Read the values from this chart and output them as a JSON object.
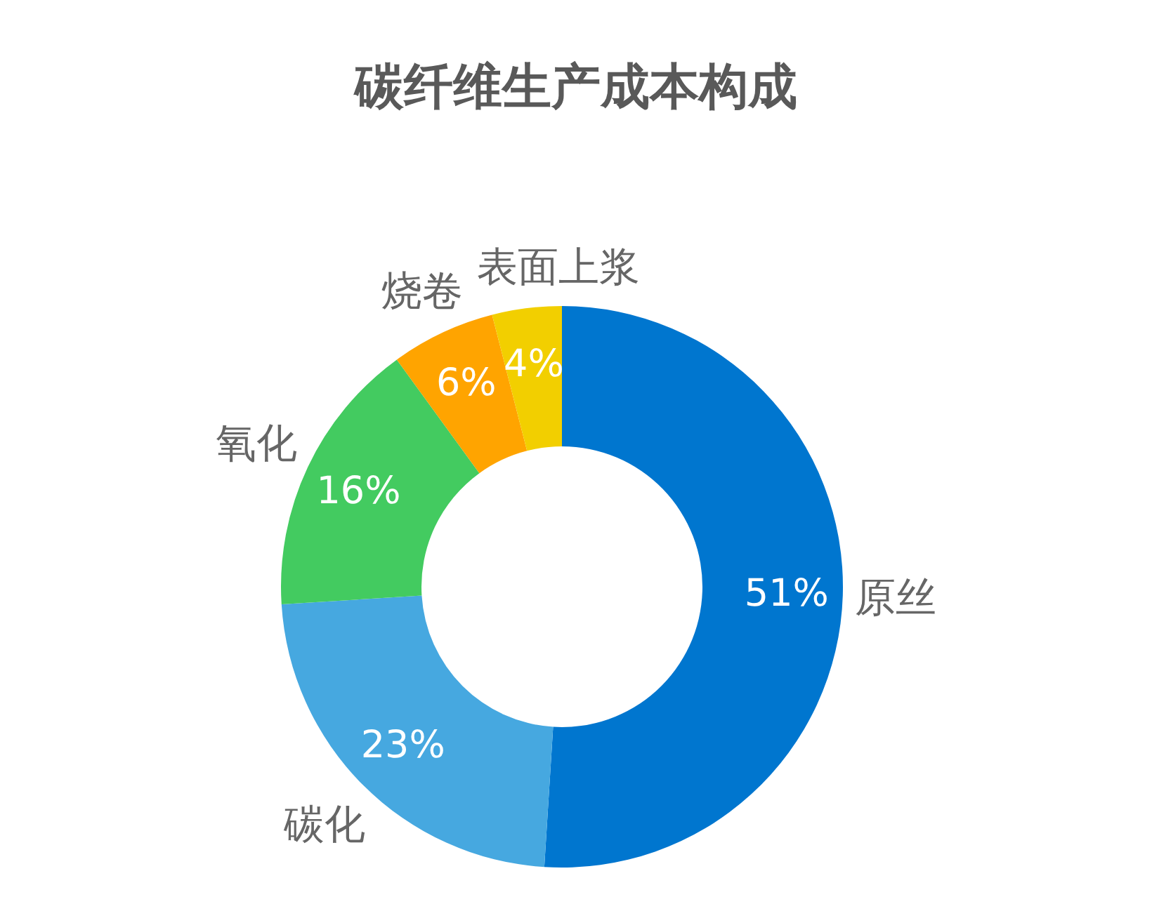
{
  "chart_data": {
    "type": "donut",
    "title": "碳纤维生产成本构成",
    "categories": [
      "原丝",
      "碳化",
      "氧化",
      "烧卷",
      "表面上浆"
    ],
    "values": [
      51,
      23,
      16,
      6,
      4
    ],
    "value_labels": [
      "51%",
      "23%",
      "16%",
      "6%",
      "4%"
    ],
    "colors": [
      "#0076cf",
      "#46a8e0",
      "#43cb60",
      "#ffa400",
      "#f2cf00"
    ]
  }
}
